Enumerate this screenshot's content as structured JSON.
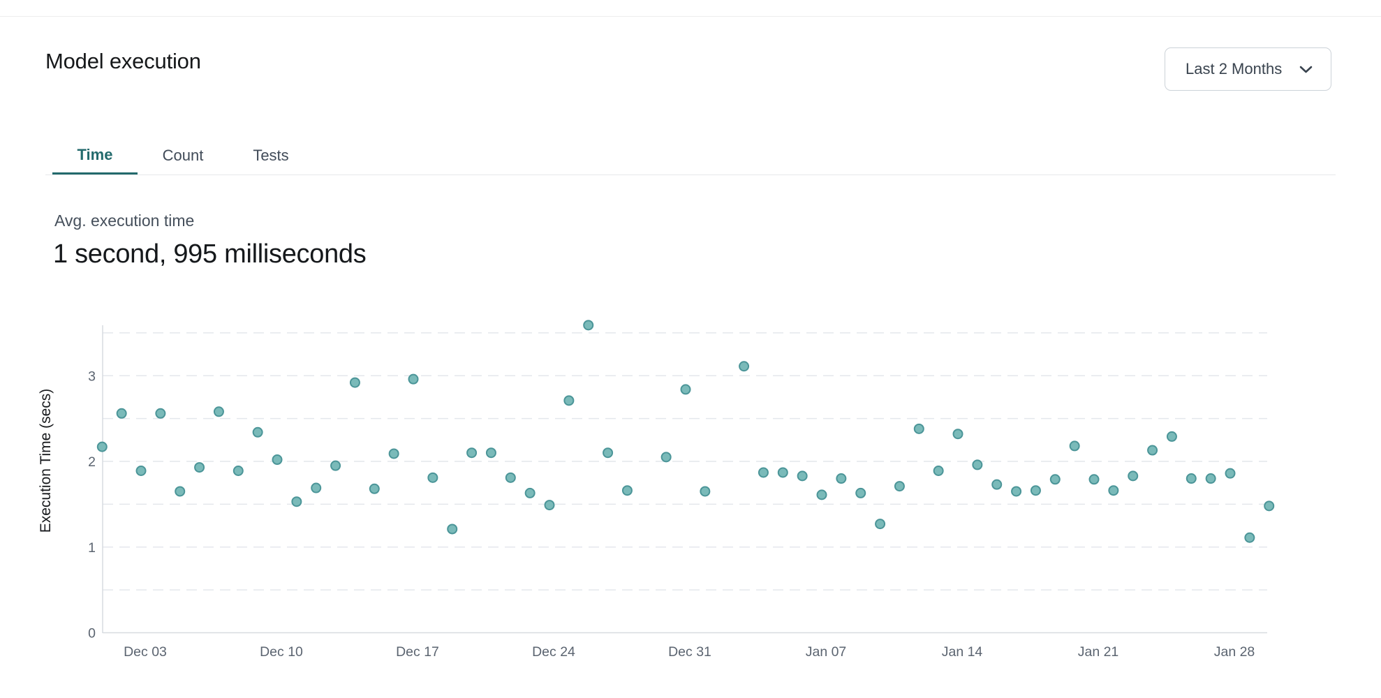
{
  "page": {
    "title": "Model execution"
  },
  "header": {
    "range_selector_label": "Last 2 Months"
  },
  "tabs": [
    {
      "label": "Time",
      "active": true
    },
    {
      "label": "Count",
      "active": false
    },
    {
      "label": "Tests",
      "active": false
    }
  ],
  "summary": {
    "label": "Avg. execution time",
    "value": "1 second, 995 milliseconds"
  },
  "chart_data": {
    "type": "scatter",
    "title": "",
    "xlabel": "",
    "ylabel": "Execution Time (secs)",
    "ylim": [
      0,
      3.65
    ],
    "y_ticks": [
      0,
      1,
      2,
      3
    ],
    "gridline_step": 0.5,
    "grid": "dashed-horizontal",
    "legend_position": "none",
    "x_ticks": [
      "Dec 03",
      "Dec 10",
      "Dec 17",
      "Dec 24",
      "Dec 31",
      "Jan 07",
      "Jan 14",
      "Jan 21",
      "Jan 28"
    ],
    "point_color": "#7abab9",
    "point_border_color": "#4b9598",
    "points": [
      {
        "date": "Dec 01",
        "secs": 2.17
      },
      {
        "date": "Dec 02",
        "secs": 2.56
      },
      {
        "date": "Dec 03",
        "secs": 1.89
      },
      {
        "date": "Dec 04",
        "secs": 2.56
      },
      {
        "date": "Dec 05",
        "secs": 1.65
      },
      {
        "date": "Dec 06",
        "secs": 1.93
      },
      {
        "date": "Dec 07",
        "secs": 2.58
      },
      {
        "date": "Dec 08",
        "secs": 1.89
      },
      {
        "date": "Dec 09",
        "secs": 2.34
      },
      {
        "date": "Dec 10",
        "secs": 2.02
      },
      {
        "date": "Dec 11",
        "secs": 1.53
      },
      {
        "date": "Dec 12",
        "secs": 1.69
      },
      {
        "date": "Dec 13",
        "secs": 1.95
      },
      {
        "date": "Dec 14",
        "secs": 2.92
      },
      {
        "date": "Dec 15",
        "secs": 1.68
      },
      {
        "date": "Dec 16",
        "secs": 2.09
      },
      {
        "date": "Dec 17",
        "secs": 2.96
      },
      {
        "date": "Dec 18",
        "secs": 1.81
      },
      {
        "date": "Dec 19",
        "secs": 1.21
      },
      {
        "date": "Dec 20",
        "secs": 2.1
      },
      {
        "date": "Dec 21",
        "secs": 2.1
      },
      {
        "date": "Dec 22",
        "secs": 1.81
      },
      {
        "date": "Dec 23",
        "secs": 1.63
      },
      {
        "date": "Dec 24",
        "secs": 1.49
      },
      {
        "date": "Dec 25",
        "secs": 2.71
      },
      {
        "date": "Dec 26",
        "secs": 3.59
      },
      {
        "date": "Dec 27",
        "secs": 2.1
      },
      {
        "date": "Dec 28",
        "secs": 1.66
      },
      {
        "date": "Dec 30",
        "secs": 2.05
      },
      {
        "date": "Dec 31",
        "secs": 2.84
      },
      {
        "date": "Jan 01",
        "secs": 1.65
      },
      {
        "date": "Jan 03",
        "secs": 3.11
      },
      {
        "date": "Jan 04",
        "secs": 1.87
      },
      {
        "date": "Jan 05",
        "secs": 1.87
      },
      {
        "date": "Jan 06",
        "secs": 1.83
      },
      {
        "date": "Jan 07",
        "secs": 1.61
      },
      {
        "date": "Jan 08",
        "secs": 1.8
      },
      {
        "date": "Jan 09",
        "secs": 1.63
      },
      {
        "date": "Jan 10",
        "secs": 1.27
      },
      {
        "date": "Jan 11",
        "secs": 1.71
      },
      {
        "date": "Jan 12",
        "secs": 2.38
      },
      {
        "date": "Jan 13",
        "secs": 1.89
      },
      {
        "date": "Jan 14",
        "secs": 2.32
      },
      {
        "date": "Jan 15",
        "secs": 1.96
      },
      {
        "date": "Jan 16",
        "secs": 1.73
      },
      {
        "date": "Jan 17",
        "secs": 1.65
      },
      {
        "date": "Jan 18",
        "secs": 1.66
      },
      {
        "date": "Jan 19",
        "secs": 1.79
      },
      {
        "date": "Jan 20",
        "secs": 2.18
      },
      {
        "date": "Jan 21",
        "secs": 1.79
      },
      {
        "date": "Jan 22",
        "secs": 1.66
      },
      {
        "date": "Jan 23",
        "secs": 1.83
      },
      {
        "date": "Jan 24",
        "secs": 2.13
      },
      {
        "date": "Jan 25",
        "secs": 2.29
      },
      {
        "date": "Jan 26",
        "secs": 1.8
      },
      {
        "date": "Jan 27",
        "secs": 1.8
      },
      {
        "date": "Jan 28",
        "secs": 1.86
      },
      {
        "date": "Jan 29",
        "secs": 1.11
      },
      {
        "date": "Jan 30",
        "secs": 1.48
      }
    ]
  }
}
